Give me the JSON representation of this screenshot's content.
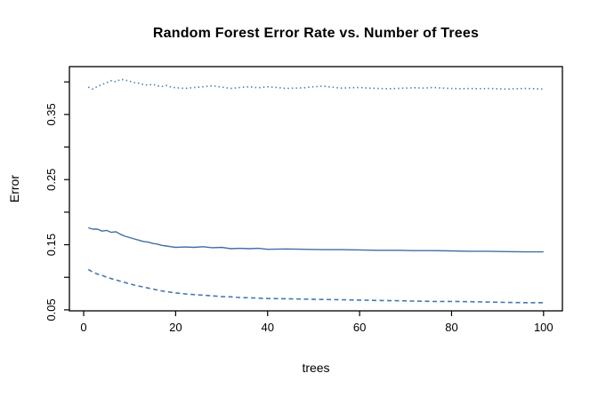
{
  "chart_data": {
    "type": "line",
    "title": "Random Forest Error Rate vs. Number of Trees",
    "xlabel": "trees",
    "ylabel": "Error",
    "xlim": [
      -3.1,
      104.1
    ],
    "ylim": [
      0.0485,
      0.4235
    ],
    "grid": false,
    "legend": "none",
    "background_color": "#ffffff",
    "axis_color": "#000000",
    "x_ticks": {
      "values": [
        0,
        20,
        40,
        60,
        80,
        100
      ],
      "labels": [
        "0",
        "20",
        "40",
        "60",
        "80",
        "100"
      ]
    },
    "y_ticks": {
      "values": [
        0.05,
        0.1,
        0.15,
        0.2,
        0.25,
        0.3,
        0.35,
        0.4
      ],
      "labeled_values": [
        0.05,
        0.15,
        0.25,
        0.35
      ],
      "labels": [
        "0.05",
        "0.15",
        "0.25",
        "0.35"
      ]
    },
    "series": [
      {
        "name": "oob-error-solid",
        "style": "solid",
        "color": "#3e6fa7",
        "trees": [
          1,
          2,
          3,
          4,
          5,
          6,
          7,
          8,
          9,
          10,
          11,
          12,
          13,
          14,
          15,
          16,
          17,
          18,
          19,
          20,
          22,
          24,
          26,
          28,
          30,
          32,
          34,
          36,
          38,
          40,
          44,
          48,
          52,
          56,
          60,
          64,
          68,
          72,
          76,
          80,
          84,
          88,
          92,
          96,
          100
        ],
        "values": [
          0.176,
          0.174,
          0.174,
          0.171,
          0.172,
          0.169,
          0.17,
          0.166,
          0.163,
          0.161,
          0.159,
          0.157,
          0.155,
          0.154,
          0.152,
          0.151,
          0.149,
          0.148,
          0.147,
          0.146,
          0.1465,
          0.146,
          0.147,
          0.1455,
          0.146,
          0.144,
          0.1445,
          0.144,
          0.1445,
          0.143,
          0.1435,
          0.143,
          0.1425,
          0.1425,
          0.142,
          0.1415,
          0.1415,
          0.141,
          0.141,
          0.1405,
          0.14,
          0.14,
          0.1395,
          0.139,
          0.139
        ]
      },
      {
        "name": "class-error-dashed",
        "style": "dashed",
        "color": "#4678b2",
        "trees": [
          1,
          2,
          3,
          4,
          5,
          6,
          7,
          8,
          9,
          10,
          11,
          12,
          13,
          14,
          15,
          16,
          17,
          18,
          19,
          20,
          22,
          24,
          26,
          28,
          30,
          32,
          34,
          36,
          38,
          40,
          44,
          48,
          52,
          56,
          60,
          64,
          68,
          72,
          76,
          80,
          84,
          88,
          92,
          96,
          100
        ],
        "values": [
          0.112,
          0.108,
          0.105,
          0.103,
          0.1,
          0.098,
          0.096,
          0.094,
          0.092,
          0.09,
          0.088,
          0.0865,
          0.085,
          0.0835,
          0.082,
          0.0805,
          0.079,
          0.078,
          0.077,
          0.076,
          0.0745,
          0.0735,
          0.0725,
          0.0715,
          0.0705,
          0.07,
          0.069,
          0.0685,
          0.068,
          0.0675,
          0.067,
          0.0665,
          0.066,
          0.0655,
          0.065,
          0.0645,
          0.064,
          0.0635,
          0.063,
          0.063,
          0.0625,
          0.062,
          0.0615,
          0.061,
          0.061
        ]
      },
      {
        "name": "class-error-dotted",
        "style": "dotted",
        "color": "#4678b2",
        "trees": [
          1,
          2,
          3,
          4,
          5,
          6,
          7,
          8,
          9,
          10,
          11,
          12,
          13,
          14,
          15,
          16,
          17,
          18,
          19,
          20,
          22,
          24,
          26,
          28,
          30,
          32,
          34,
          36,
          38,
          40,
          42,
          44,
          46,
          48,
          50,
          52,
          54,
          56,
          58,
          60,
          62,
          64,
          66,
          68,
          70,
          72,
          74,
          76,
          78,
          80,
          82,
          84,
          86,
          88,
          90,
          92,
          94,
          96,
          98,
          100
        ],
        "values": [
          0.392,
          0.389,
          0.393,
          0.396,
          0.399,
          0.402,
          0.4,
          0.404,
          0.403,
          0.401,
          0.399,
          0.398,
          0.396,
          0.395,
          0.3965,
          0.394,
          0.393,
          0.3945,
          0.392,
          0.391,
          0.39,
          0.3915,
          0.3925,
          0.394,
          0.392,
          0.39,
          0.3915,
          0.3925,
          0.391,
          0.3925,
          0.3915,
          0.39,
          0.3905,
          0.391,
          0.3925,
          0.3935,
          0.392,
          0.3905,
          0.391,
          0.3915,
          0.3905,
          0.39,
          0.3895,
          0.39,
          0.3905,
          0.391,
          0.3905,
          0.3915,
          0.3905,
          0.39,
          0.3895,
          0.39,
          0.3895,
          0.39,
          0.3895,
          0.389,
          0.3895,
          0.39,
          0.3895,
          0.389
        ]
      }
    ]
  }
}
